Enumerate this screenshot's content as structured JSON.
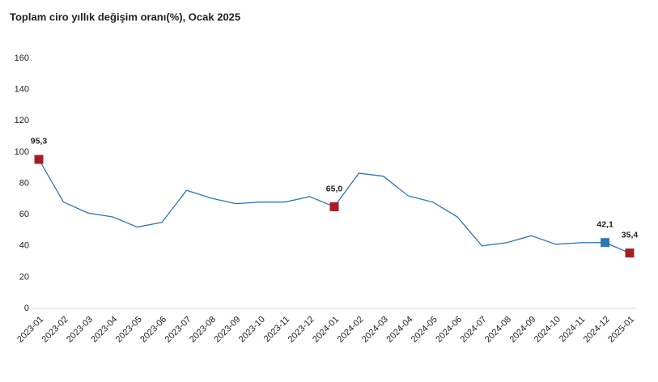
{
  "chart_data": {
    "type": "line",
    "title": "Toplam ciro yıllık değişim oranı(%), Ocak 2025",
    "categories": [
      "2023-01",
      "2023-02",
      "2023-03",
      "2023-04",
      "2023-05",
      "2023-06",
      "2023-07",
      "2023-08",
      "2023-09",
      "2023-10",
      "2023-11",
      "2023-12",
      "2024-01",
      "2024-02",
      "2024-03",
      "2024-04",
      "2024-05",
      "2024-06",
      "2024-07",
      "2024-08",
      "2024-09",
      "2024-10",
      "2024-11",
      "2024-12",
      "2025-01"
    ],
    "values": [
      95.3,
      68,
      61,
      58.5,
      52,
      55,
      75.5,
      70.5,
      67,
      68,
      68,
      71.5,
      65.0,
      86.5,
      84.5,
      72,
      68,
      58.5,
      40,
      42,
      46.5,
      41,
      42,
      42.1,
      35.4
    ],
    "value_labels": [
      "95,3",
      null,
      null,
      null,
      null,
      null,
      null,
      null,
      null,
      null,
      null,
      null,
      "65,0",
      null,
      null,
      null,
      null,
      null,
      null,
      null,
      null,
      null,
      null,
      "42,1",
      "35,4"
    ],
    "marker_colors": [
      "#a51d23",
      null,
      null,
      null,
      null,
      null,
      null,
      null,
      null,
      null,
      null,
      null,
      "#a51d23",
      null,
      null,
      null,
      null,
      null,
      null,
      null,
      null,
      null,
      null,
      "#2e75b6",
      "#a51d23"
    ],
    "color": "#2e75b6",
    "ylim": [
      0,
      160
    ],
    "yticks": [
      0,
      20,
      40,
      60,
      80,
      100,
      120,
      140,
      160
    ]
  }
}
